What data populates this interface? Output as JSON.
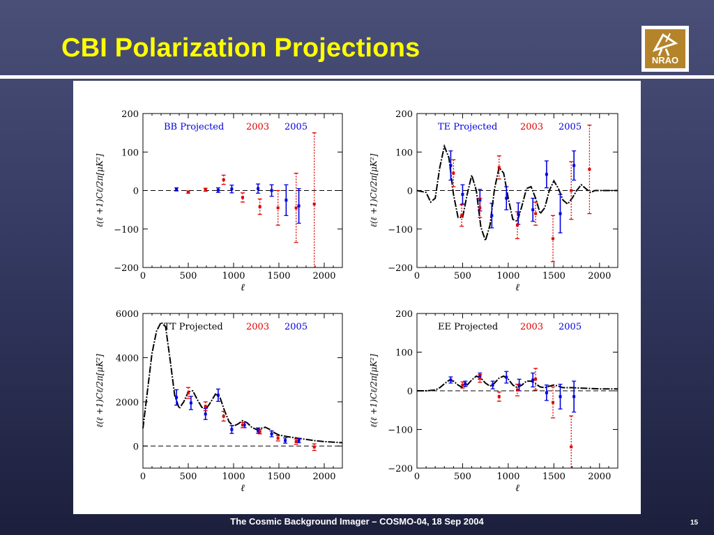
{
  "slide": {
    "title": "CBI Polarization Projections",
    "footer": "The Cosmic Background Imager – COSMO-04, 18 Sep 2004",
    "page_number": "15",
    "logo_text": "NRAO"
  },
  "colors": {
    "c2003": "#dd0000",
    "c2005": "#0000dd",
    "theory": "#000000"
  },
  "chart_data": [
    {
      "type": "scatter",
      "panel_label": "BB Projected",
      "legend": [
        "2003",
        "2005"
      ],
      "xlabel": "ℓ",
      "ylabel": "ℓ(ℓ +1)Cℓ/2π[μK²]",
      "xlim": [
        0,
        2200
      ],
      "ylim": [
        -200,
        200
      ],
      "xticks": [
        0,
        500,
        1000,
        1500,
        2000
      ],
      "yticks": [
        -200,
        -100,
        0,
        100,
        200
      ],
      "ytick_labels": [
        "−200",
        "−100",
        "0",
        "100",
        "200"
      ],
      "grid": false,
      "series": [
        {
          "name": "2005",
          "points": [
            {
              "x": 370,
              "y": 3,
              "err": 4
            },
            {
              "x": 830,
              "y": 1,
              "err": 6
            },
            {
              "x": 980,
              "y": 4,
              "err": 10
            },
            {
              "x": 1270,
              "y": 5,
              "err": 12
            },
            {
              "x": 1420,
              "y": 0,
              "err": 15
            },
            {
              "x": 1580,
              "y": -25,
              "err": 40
            },
            {
              "x": 1720,
              "y": -40,
              "err": 45
            }
          ]
        },
        {
          "name": "2003",
          "points": [
            {
              "x": 500,
              "y": -4,
              "err": 3
            },
            {
              "x": 690,
              "y": 2,
              "err": 4
            },
            {
              "x": 890,
              "y": 28,
              "err": 12
            },
            {
              "x": 1100,
              "y": -18,
              "err": 12
            },
            {
              "x": 1290,
              "y": -42,
              "err": 20
            },
            {
              "x": 1490,
              "y": -45,
              "err": 45
            },
            {
              "x": 1690,
              "y": -45,
              "err": 90
            },
            {
              "x": 1890,
              "y": -35,
              "err": 185
            }
          ]
        }
      ]
    },
    {
      "type": "scatter",
      "panel_label": "TE Projected",
      "legend": [
        "2003",
        "2005"
      ],
      "xlabel": "ℓ",
      "ylabel": "ℓ(ℓ +1)Cℓ/2π[μK²]",
      "xlim": [
        0,
        2200
      ],
      "ylim": [
        -200,
        200
      ],
      "xticks": [
        0,
        500,
        1000,
        1500,
        2000
      ],
      "yticks": [
        -200,
        -100,
        0,
        100,
        200
      ],
      "ytick_labels": [
        "−200",
        "−100",
        "0",
        "100",
        "200"
      ],
      "grid": false,
      "theory": {
        "x": [
          0,
          100,
          150,
          200,
          250,
          300,
          350,
          400,
          450,
          500,
          550,
          600,
          650,
          700,
          750,
          800,
          850,
          900,
          950,
          1000,
          1050,
          1100,
          1150,
          1200,
          1250,
          1300,
          1350,
          1400,
          1450,
          1500,
          1550,
          1600,
          1650,
          1700,
          1750,
          1800,
          1850,
          1900,
          1950,
          2000,
          2200
        ],
        "y": [
          0,
          -5,
          -30,
          -20,
          60,
          115,
          85,
          -10,
          -70,
          -70,
          -10,
          40,
          0,
          -95,
          -130,
          -90,
          5,
          60,
          45,
          -20,
          -75,
          -80,
          -40,
          5,
          10,
          -20,
          -60,
          -45,
          0,
          25,
          5,
          -25,
          -35,
          -20,
          0,
          15,
          5,
          -5,
          0,
          0,
          0
        ]
      },
      "series": [
        {
          "name": "2005",
          "points": [
            {
              "x": 370,
              "y": 65,
              "err": 38
            },
            {
              "x": 500,
              "y": -10,
              "err": 25
            },
            {
              "x": 690,
              "y": -25,
              "err": 28
            },
            {
              "x": 820,
              "y": -65,
              "err": 32
            },
            {
              "x": 980,
              "y": -20,
              "err": 30
            },
            {
              "x": 1110,
              "y": -60,
              "err": 28
            },
            {
              "x": 1270,
              "y": -50,
              "err": 30
            },
            {
              "x": 1420,
              "y": 42,
              "err": 35
            },
            {
              "x": 1570,
              "y": -60,
              "err": 50
            },
            {
              "x": 1720,
              "y": 65,
              "err": 38
            }
          ]
        },
        {
          "name": "2003",
          "points": [
            {
              "x": 400,
              "y": 45,
              "err": 35
            },
            {
              "x": 490,
              "y": -65,
              "err": 28
            },
            {
              "x": 690,
              "y": -45,
              "err": 25
            },
            {
              "x": 900,
              "y": 60,
              "err": 30
            },
            {
              "x": 1100,
              "y": -90,
              "err": 35
            },
            {
              "x": 1300,
              "y": -60,
              "err": 30
            },
            {
              "x": 1490,
              "y": -125,
              "err": 60
            },
            {
              "x": 1690,
              "y": 0,
              "err": 75
            },
            {
              "x": 1890,
              "y": 55,
              "err": 115
            }
          ]
        }
      ]
    },
    {
      "type": "scatter",
      "panel_label": "TT Projected",
      "legend": [
        "2003",
        "2005"
      ],
      "xlabel": "ℓ",
      "ylabel": "ℓ(ℓ +1)Cℓ/2π[μK²]",
      "xlim": [
        0,
        2200
      ],
      "ylim": [
        -1000,
        6000
      ],
      "xticks": [
        0,
        500,
        1000,
        1500,
        2000
      ],
      "yticks": [
        0,
        2000,
        4000,
        6000
      ],
      "ytick_labels": [
        "0",
        "2000",
        "4000",
        "6000"
      ],
      "grid": false,
      "theory": {
        "x": [
          0,
          50,
          100,
          150,
          200,
          250,
          300,
          350,
          400,
          450,
          500,
          550,
          600,
          650,
          700,
          750,
          800,
          850,
          900,
          950,
          1000,
          1050,
          1100,
          1150,
          1200,
          1250,
          1300,
          1350,
          1400,
          1450,
          1500,
          1600,
          1700,
          1800,
          1900,
          2000,
          2200
        ],
        "y": [
          800,
          2500,
          4200,
          5200,
          5600,
          5400,
          3900,
          2300,
          1700,
          2000,
          2450,
          2500,
          2100,
          1750,
          1700,
          2000,
          2350,
          2200,
          1600,
          1100,
          900,
          1000,
          1150,
          1050,
          850,
          750,
          800,
          850,
          750,
          600,
          500,
          420,
          360,
          300,
          240,
          200,
          150
        ]
      },
      "series": [
        {
          "name": "2005",
          "points": [
            {
              "x": 370,
              "y": 2200,
              "err": 350
            },
            {
              "x": 530,
              "y": 1950,
              "err": 300
            },
            {
              "x": 690,
              "y": 1450,
              "err": 250
            },
            {
              "x": 830,
              "y": 2300,
              "err": 280
            },
            {
              "x": 980,
              "y": 750,
              "err": 180
            },
            {
              "x": 1120,
              "y": 950,
              "err": 120
            },
            {
              "x": 1270,
              "y": 700,
              "err": 120
            },
            {
              "x": 1420,
              "y": 550,
              "err": 130
            },
            {
              "x": 1570,
              "y": 250,
              "err": 120
            },
            {
              "x": 1720,
              "y": 250,
              "err": 100
            }
          ]
        },
        {
          "name": "2003",
          "points": [
            {
              "x": 500,
              "y": 2400,
              "err": 250
            },
            {
              "x": 690,
              "y": 1800,
              "err": 200
            },
            {
              "x": 890,
              "y": 1350,
              "err": 220
            },
            {
              "x": 1100,
              "y": 950,
              "err": 120
            },
            {
              "x": 1290,
              "y": 650,
              "err": 100
            },
            {
              "x": 1490,
              "y": 350,
              "err": 120
            },
            {
              "x": 1690,
              "y": 200,
              "err": 120
            },
            {
              "x": 1890,
              "y": -50,
              "err": 150
            }
          ]
        }
      ]
    },
    {
      "type": "scatter",
      "panel_label": "EE Projected",
      "legend": [
        "2003",
        "2005"
      ],
      "xlabel": "ℓ",
      "ylabel": "ℓ(ℓ +1)Cℓ/2π[μK²]",
      "xlim": [
        0,
        2200
      ],
      "ylim": [
        -200,
        200
      ],
      "xticks": [
        0,
        500,
        1000,
        1500,
        2000
      ],
      "yticks": [
        -200,
        -100,
        0,
        100,
        200
      ],
      "ytick_labels": [
        "−200",
        "−100",
        "0",
        "100",
        "200"
      ],
      "grid": false,
      "theory": {
        "x": [
          0,
          100,
          200,
          250,
          300,
          350,
          400,
          450,
          500,
          550,
          600,
          650,
          700,
          750,
          800,
          850,
          900,
          950,
          1000,
          1050,
          1100,
          1150,
          1200,
          1250,
          1300,
          1350,
          1400,
          1450,
          1500,
          1550,
          1600,
          1700,
          1800,
          1900,
          2000,
          2200
        ],
        "y": [
          0,
          0,
          2,
          8,
          18,
          27,
          25,
          15,
          8,
          15,
          28,
          38,
          33,
          20,
          12,
          20,
          33,
          38,
          30,
          15,
          8,
          15,
          25,
          25,
          18,
          10,
          8,
          12,
          15,
          12,
          8,
          8,
          7,
          6,
          5,
          5
        ]
      },
      "series": [
        {
          "name": "2005",
          "points": [
            {
              "x": 370,
              "y": 28,
              "err": 8
            },
            {
              "x": 530,
              "y": 18,
              "err": 7
            },
            {
              "x": 690,
              "y": 38,
              "err": 8
            },
            {
              "x": 830,
              "y": 15,
              "err": 10
            },
            {
              "x": 980,
              "y": 35,
              "err": 15
            },
            {
              "x": 1120,
              "y": 15,
              "err": 15
            },
            {
              "x": 1270,
              "y": 28,
              "err": 18
            },
            {
              "x": 1420,
              "y": -5,
              "err": 20
            },
            {
              "x": 1570,
              "y": -15,
              "err": 32
            },
            {
              "x": 1720,
              "y": -15,
              "err": 40
            }
          ]
        },
        {
          "name": "2003",
          "points": [
            {
              "x": 500,
              "y": 15,
              "err": 8
            },
            {
              "x": 690,
              "y": 32,
              "err": 10
            },
            {
              "x": 900,
              "y": -15,
              "err": 12
            },
            {
              "x": 1100,
              "y": 2,
              "err": 15
            },
            {
              "x": 1300,
              "y": 30,
              "err": 28
            },
            {
              "x": 1490,
              "y": -30,
              "err": 40
            },
            {
              "x": 1690,
              "y": -145,
              "err": 80
            }
          ]
        }
      ]
    }
  ]
}
